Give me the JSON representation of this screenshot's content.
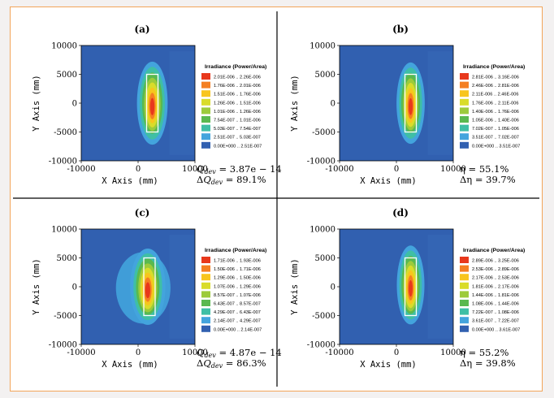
{
  "chart_data": [
    {
      "type": "heatmap",
      "panel_label": "(a)",
      "xlabel": "X Axis (mm)",
      "ylabel": "Y Axis (mm)",
      "xlim": [
        -10000,
        10000
      ],
      "ylim": [
        -10000,
        10000
      ],
      "x_ticks": [
        "-10000",
        "0",
        "10000"
      ],
      "y_ticks": [
        "10000",
        "5000",
        "0",
        "-5000",
        "-10000"
      ],
      "legend_title": "Irradiance (Power/Area)",
      "legend": [
        {
          "range": "2.01E-006 .. 2.26E-006",
          "color": "#e8381c"
        },
        {
          "range": "1.76E-006 .. 2.01E-006",
          "color": "#f47f22"
        },
        {
          "range": "1.51E-006 .. 1.76E-006",
          "color": "#f8c51d"
        },
        {
          "range": "1.26E-006 .. 1.51E-006",
          "color": "#d9dc2a"
        },
        {
          "range": "1.01E-006 .. 1.26E-006",
          "color": "#9ccb3b"
        },
        {
          "range": "7.54E-007 .. 1.01E-006",
          "color": "#5ab94f"
        },
        {
          "range": "5.03E-007 .. 7.54E-007",
          "color": "#3fbfa5"
        },
        {
          "range": "2.51E-007 .. 5.03E-007",
          "color": "#43a4dd"
        },
        {
          "range": "0.00E+000 .. 2.51E-007",
          "color": "#3160b0"
        }
      ],
      "receiver_rect": {
        "x": [
          1500,
          3500
        ],
        "y": [
          -5000,
          5000
        ]
      },
      "annotation": [
        "Q_dev = 3.87e − 14",
        "ΔQ_dev = 89.1%"
      ]
    },
    {
      "type": "heatmap",
      "panel_label": "(b)",
      "xlabel": "X Axis (mm)",
      "ylabel": "Y Axis (mm)",
      "xlim": [
        -10000,
        10000
      ],
      "ylim": [
        -10000,
        10000
      ],
      "x_ticks": [
        "-10000",
        "0",
        "10000"
      ],
      "y_ticks": [
        "10000",
        "5000",
        "0",
        "-5000",
        "-10000"
      ],
      "legend_title": "Irradiance (Power/Area)",
      "legend": [
        {
          "range": "2.81E-006 .. 3.16E-006",
          "color": "#e8381c"
        },
        {
          "range": "2.46E-006 .. 2.81E-006",
          "color": "#f47f22"
        },
        {
          "range": "2.11E-006 .. 2.46E-006",
          "color": "#f8c51d"
        },
        {
          "range": "1.76E-006 .. 2.11E-006",
          "color": "#d9dc2a"
        },
        {
          "range": "1.40E-006 .. 1.76E-006",
          "color": "#9ccb3b"
        },
        {
          "range": "1.05E-006 .. 1.40E-006",
          "color": "#5ab94f"
        },
        {
          "range": "7.02E-007 .. 1.05E-006",
          "color": "#3fbfa5"
        },
        {
          "range": "3.51E-007 .. 7.02E-007",
          "color": "#43a4dd"
        },
        {
          "range": "0.00E+000 .. 3.51E-007",
          "color": "#3160b0"
        }
      ],
      "receiver_rect": {
        "x": [
          1500,
          3500
        ],
        "y": [
          -5000,
          5000
        ]
      },
      "annotation": [
        "η = 55.1%",
        "Δη = 39.7%"
      ]
    },
    {
      "type": "heatmap",
      "panel_label": "(c)",
      "xlabel": "X Axis (mm)",
      "ylabel": "Y Axis (mm)",
      "xlim": [
        -10000,
        10000
      ],
      "ylim": [
        -10000,
        10000
      ],
      "x_ticks": [
        "-10000",
        "0",
        "10000"
      ],
      "y_ticks": [
        "10000",
        "5000",
        "0",
        "-5000",
        "-10000"
      ],
      "legend_title": "Irradiance (Power/Area)",
      "legend": [
        {
          "range": "1.71E-006 .. 1.93E-006",
          "color": "#e8381c"
        },
        {
          "range": "1.50E-006 .. 1.71E-006",
          "color": "#f47f22"
        },
        {
          "range": "1.29E-006 .. 1.50E-006",
          "color": "#f8c51d"
        },
        {
          "range": "1.07E-006 .. 1.29E-006",
          "color": "#d9dc2a"
        },
        {
          "range": "8.57E-007 .. 1.07E-006",
          "color": "#9ccb3b"
        },
        {
          "range": "6.43E-007 .. 8.57E-007",
          "color": "#5ab94f"
        },
        {
          "range": "4.29E-007 .. 6.43E-007",
          "color": "#3fbfa5"
        },
        {
          "range": "2.14E-007 .. 4.29E-007",
          "color": "#43a4dd"
        },
        {
          "range": "0.00E+000 .. 2.14E-007",
          "color": "#3160b0"
        }
      ],
      "receiver_rect": {
        "x": [
          1000,
          3000
        ],
        "y": [
          -5000,
          5000
        ]
      },
      "annotation": [
        "Q_dev = 4.87e − 14",
        "ΔQ_dev = 86.3%"
      ]
    },
    {
      "type": "heatmap",
      "panel_label": "(d)",
      "xlabel": "X Axis (mm)",
      "ylabel": "Y Axis (mm)",
      "xlim": [
        -10000,
        10000
      ],
      "ylim": [
        -10000,
        10000
      ],
      "x_ticks": [
        "-10000",
        "0",
        "10000"
      ],
      "y_ticks": [
        "10000",
        "5000",
        "0",
        "-5000",
        "-10000"
      ],
      "legend_title": "Irradiance (Power/Area)",
      "legend": [
        {
          "range": "2.89E-006 .. 3.25E-006",
          "color": "#e8381c"
        },
        {
          "range": "2.53E-006 .. 2.89E-006",
          "color": "#f47f22"
        },
        {
          "range": "2.17E-006 .. 2.53E-006",
          "color": "#f8c51d"
        },
        {
          "range": "1.81E-006 .. 2.17E-006",
          "color": "#d9dc2a"
        },
        {
          "range": "1.44E-006 .. 1.81E-006",
          "color": "#9ccb3b"
        },
        {
          "range": "1.08E-006 .. 1.44E-006",
          "color": "#5ab94f"
        },
        {
          "range": "7.22E-007 .. 1.08E-006",
          "color": "#3fbfa5"
        },
        {
          "range": "3.61E-007 .. 7.22E-007",
          "color": "#43a4dd"
        },
        {
          "range": "0.00E+000 .. 3.61E-007",
          "color": "#3160b0"
        }
      ],
      "receiver_rect": {
        "x": [
          1500,
          3500
        ],
        "y": [
          -5000,
          5000
        ]
      },
      "annotation": [
        "η = 55.2%",
        "Δη = 39.8%"
      ]
    }
  ]
}
